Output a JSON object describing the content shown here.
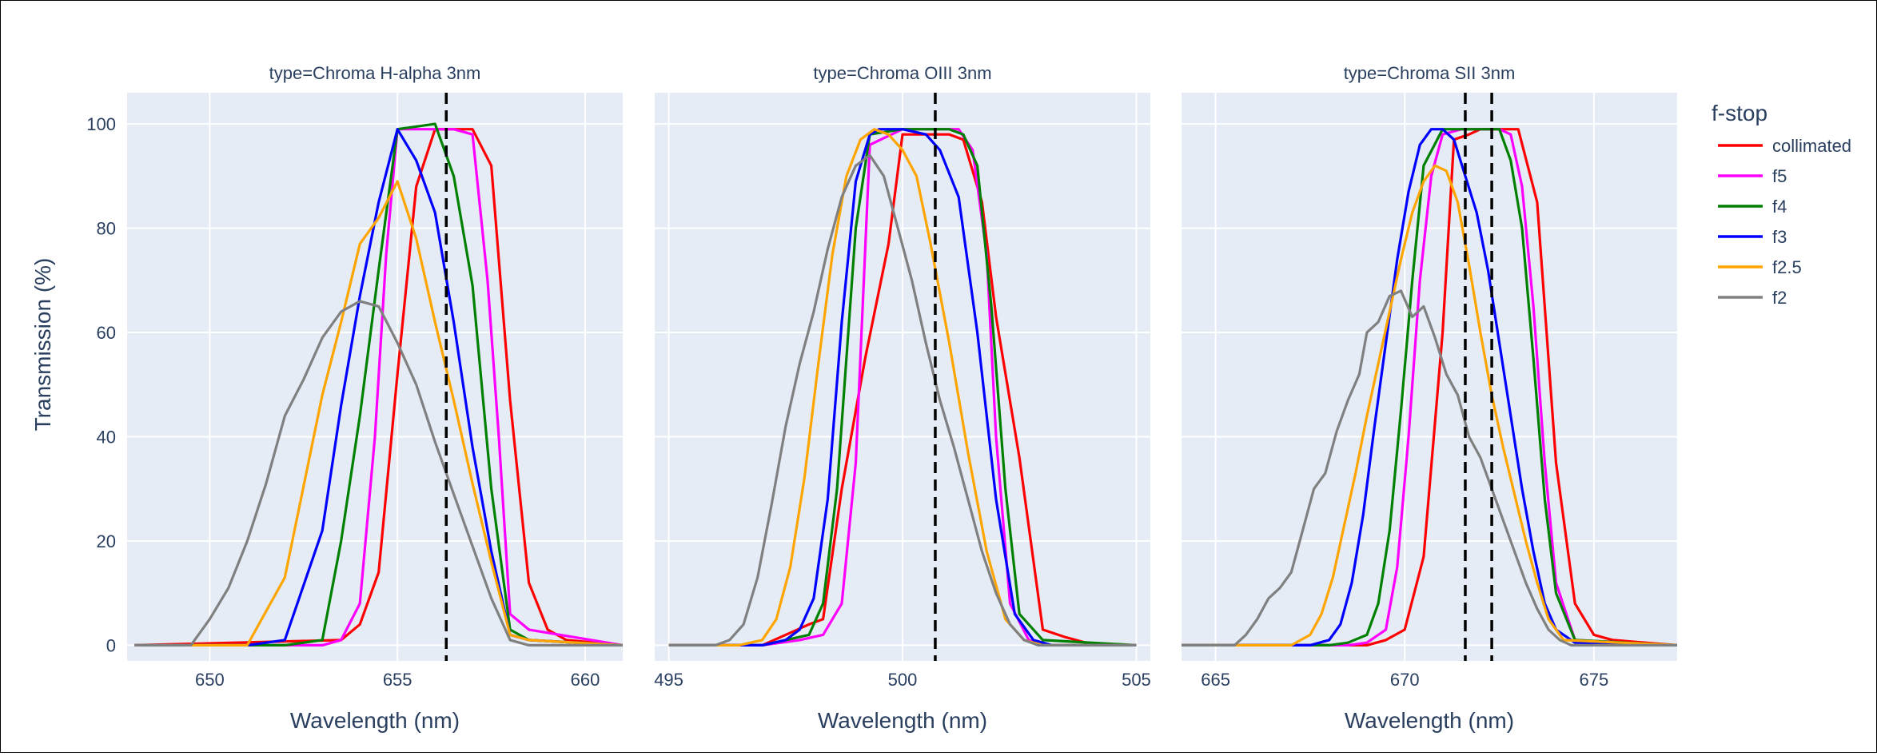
{
  "chart_data": {
    "type": "line",
    "ylabel": "Transmission (%)",
    "xlabel": "Wavelength (nm)",
    "ylim": [
      -3,
      106
    ],
    "y_ticks": [
      0,
      20,
      40,
      60,
      80,
      100
    ],
    "grid": true,
    "legend": {
      "title": "f-stop",
      "position": "right",
      "items": [
        {
          "name": "collimated",
          "color": "#ff0000"
        },
        {
          "name": "f5",
          "color": "#ff00ff"
        },
        {
          "name": "f4",
          "color": "#008000"
        },
        {
          "name": "f3",
          "color": "#0000ff"
        },
        {
          "name": "f2.5",
          "color": "#ffa500"
        },
        {
          "name": "f2",
          "color": "#808080"
        }
      ]
    },
    "colors": {
      "plot_bg": "#e5ecf6",
      "grid": "#ffffff",
      "text": "#2a3f5f",
      "marker_line": "#000000"
    },
    "panels": [
      {
        "title": "type=Chroma H-alpha 3nm",
        "xlim": [
          647.8,
          661.0
        ],
        "x_ticks": [
          650,
          655,
          660
        ],
        "marker_lines": [
          656.3
        ],
        "series": [
          {
            "name": "collimated",
            "x": [
              648,
              653.5,
              654,
              654.5,
              655,
              655.5,
              656,
              656.5,
              657,
              657.5,
              658,
              658.5,
              659,
              659.5,
              661
            ],
            "y": [
              0,
              1,
              4,
              14,
              52,
              88,
              99,
              99,
              99,
              92,
              47,
              12,
              3,
              1,
              0
            ]
          },
          {
            "name": "f5",
            "x": [
              648,
              653,
              653.5,
              654,
              654.4,
              654.7,
              655,
              655.5,
              656,
              656.5,
              657,
              657.4,
              657.7,
              658,
              658.5,
              661
            ],
            "y": [
              0,
              0,
              1,
              8,
              40,
              75,
              99,
              99,
              99,
              99,
              98,
              70,
              40,
              6,
              3,
              0
            ]
          },
          {
            "name": "f4",
            "x": [
              648,
              652,
              653,
              653.5,
              654,
              654.5,
              655,
              656,
              656.5,
              657,
              657.5,
              658,
              658.5,
              661
            ],
            "y": [
              0,
              0,
              1,
              20,
              44,
              72,
              99,
              100,
              90,
              69,
              30,
              3,
              1,
              0
            ]
          },
          {
            "name": "f3",
            "x": [
              648,
              651,
              652,
              653,
              653.5,
              654,
              654.5,
              655,
              655.5,
              656,
              656.5,
              657,
              657.5,
              658,
              658.5,
              661
            ],
            "y": [
              0,
              0,
              1,
              22,
              46,
              67,
              85,
              99,
              93,
              83,
              62,
              38,
              18,
              2,
              1,
              0
            ]
          },
          {
            "name": "f2.5",
            "x": [
              648,
              651,
              652,
              653,
              653.5,
              654,
              654.5,
              655,
              655.5,
              656,
              656.5,
              657,
              657.5,
              658,
              658.5,
              661
            ],
            "y": [
              0,
              0,
              13,
              48,
              62,
              77,
              82,
              89,
              78,
              62,
              47,
              31,
              16,
              2,
              1,
              0
            ]
          },
          {
            "name": "f2",
            "x": [
              648,
              649.5,
              650,
              650.5,
              651,
              651.5,
              652,
              652.5,
              653,
              653.5,
              654,
              654.5,
              655,
              655.5,
              656,
              656.5,
              657,
              657.5,
              658,
              658.5,
              661
            ],
            "y": [
              0,
              0,
              5,
              11,
              20,
              31,
              44,
              51,
              59,
              64,
              66,
              65,
              58,
              50,
              39,
              29,
              19,
              9,
              1,
              0,
              0
            ]
          }
        ]
      },
      {
        "title": "type=Chroma OIII 3nm",
        "xlim": [
          494.7,
          505.3
        ],
        "x_ticks": [
          495,
          500,
          505
        ],
        "marker_lines": [
          500.7
        ],
        "series": [
          {
            "name": "collimated",
            "x": [
              495,
              497,
              497.5,
              498,
              498.3,
              498.7,
              499.2,
              499.7,
              500,
              500.5,
              501,
              501.3,
              501.7,
              502,
              502.5,
              503,
              503.5,
              504,
              505
            ],
            "y": [
              0,
              0,
              2,
              4,
              5,
              30,
              55,
              77,
              98,
              98,
              98,
              97,
              85,
              63,
              36,
              3,
              1.5,
              0.3,
              0
            ]
          },
          {
            "name": "f5",
            "x": [
              495,
              497,
              497.8,
              498.3,
              498.7,
              499,
              499.3,
              500,
              500.5,
              501,
              501.2,
              501.5,
              501.8,
              502,
              502.3,
              502.7,
              503,
              505
            ],
            "y": [
              0,
              0,
              1,
              2,
              8,
              35,
              96,
              99,
              99,
              99,
              99,
              95,
              75,
              40,
              8,
              1,
              0,
              0
            ]
          },
          {
            "name": "f4",
            "x": [
              495,
              497,
              497.5,
              498,
              498.3,
              498.6,
              499,
              499.3,
              500,
              501,
              501.3,
              501.6,
              501.9,
              502.2,
              502.5,
              503,
              505
            ],
            "y": [
              0,
              0,
              1,
              2,
              8,
              30,
              80,
              98,
              99,
              99,
              98,
              92,
              65,
              30,
              6,
              1,
              0
            ]
          },
          {
            "name": "f3",
            "x": [
              495,
              497,
              497.5,
              497.8,
              498.1,
              498.4,
              498.7,
              499,
              499.3,
              499.5,
              500,
              500.5,
              500.8,
              501.2,
              501.6,
              502,
              502.4,
              502.8,
              503.2,
              505
            ],
            "y": [
              0,
              0,
              1,
              3,
              9,
              28,
              62,
              89,
              98,
              99,
              99,
              98,
              95,
              86,
              60,
              28,
              6,
              1,
              0,
              0
            ]
          },
          {
            "name": "f2.5",
            "x": [
              495,
              496.5,
              497,
              497.3,
              497.6,
              497.9,
              498.2,
              498.5,
              498.8,
              499.1,
              499.4,
              499.7,
              500,
              500.3,
              500.6,
              501,
              501.4,
              501.8,
              502.2,
              502.6,
              503,
              505
            ],
            "y": [
              0,
              0,
              1,
              5,
              15,
              32,
              54,
              75,
              90,
              97,
              99,
              98,
              95,
              90,
              77,
              58,
              37,
              18,
              5,
              1,
              0,
              0
            ]
          },
          {
            "name": "f2",
            "x": [
              495,
              496,
              496.3,
              496.6,
              496.9,
              497.2,
              497.5,
              497.8,
              498.1,
              498.4,
              498.7,
              499,
              499.3,
              499.6,
              499.9,
              500.2,
              500.5,
              500.8,
              501.1,
              501.4,
              501.7,
              502,
              502.3,
              502.6,
              502.9,
              503.2,
              505
            ],
            "y": [
              0,
              0,
              1,
              4,
              13,
              27,
              42,
              54,
              64,
              76,
              86,
              92,
              94,
              90,
              80,
              70,
              58,
              47,
              38,
              28,
              18,
              10,
              4,
              1,
              0,
              0,
              0
            ]
          }
        ]
      },
      {
        "title": "type=Chroma SII 3nm",
        "xlim": [
          664.1,
          677.2
        ],
        "x_ticks": [
          665,
          670,
          675
        ],
        "marker_lines": [
          671.6,
          672.3
        ],
        "series": [
          {
            "name": "collimated",
            "x": [
              664,
              669,
              669.5,
              670,
              670.5,
              671,
              671.3,
              671.7,
              672,
              672.5,
              673,
              673.5,
              674,
              674.5,
              675,
              675.5,
              677.2
            ],
            "y": [
              0,
              0,
              1,
              3,
              17,
              60,
              97,
              98,
              99,
              99,
              99,
              85,
              35,
              8,
              2,
              1,
              0
            ]
          },
          {
            "name": "f5",
            "x": [
              664,
              668.5,
              669,
              669.5,
              669.8,
              670.1,
              670.4,
              670.7,
              671,
              671.5,
              672,
              672.5,
              672.8,
              673.1,
              673.4,
              673.7,
              674,
              674.5,
              677.2
            ],
            "y": [
              0,
              0,
              0.5,
              3,
              15,
              40,
              70,
              90,
              98,
              99,
              99,
              99,
              98,
              88,
              65,
              35,
              12,
              1,
              0
            ]
          },
          {
            "name": "f4",
            "x": [
              664,
              668,
              668.5,
              669,
              669.3,
              669.6,
              669.9,
              670.2,
              670.5,
              671,
              671.5,
              672,
              672.5,
              672.8,
              673.1,
              673.4,
              673.7,
              674,
              674.5,
              677.2
            ],
            "y": [
              0,
              0,
              0.5,
              2,
              8,
              22,
              45,
              70,
              92,
              99,
              99,
              99,
              99,
              93,
              80,
              55,
              28,
              10,
              1,
              0
            ]
          },
          {
            "name": "f3",
            "x": [
              664,
              667.5,
              668,
              668.3,
              668.6,
              668.9,
              669.2,
              669.5,
              669.8,
              670.1,
              670.4,
              670.7,
              671,
              671.3,
              671.6,
              671.9,
              672.2,
              672.5,
              672.8,
              673.1,
              673.4,
              673.7,
              674,
              674.5,
              677.2
            ],
            "y": [
              0,
              0,
              1,
              4,
              12,
              25,
              42,
              58,
              74,
              87,
              96,
              99,
              99,
              97,
              90,
              83,
              72,
              58,
              44,
              30,
              18,
              8,
              3,
              0.5,
              0
            ]
          },
          {
            "name": "f2.5",
            "x": [
              664,
              667,
              667.5,
              667.8,
              668.1,
              668.4,
              668.7,
              669,
              669.3,
              669.6,
              669.9,
              670.2,
              670.5,
              670.8,
              671.1,
              671.4,
              671.7,
              672,
              672.3,
              672.6,
              672.9,
              673.2,
              673.5,
              673.8,
              674.2,
              677.2
            ],
            "y": [
              0,
              0,
              2,
              6,
              13,
              23,
              33,
              44,
              54,
              64,
              74,
              83,
              89,
              92,
              91,
              85,
              73,
              60,
              48,
              38,
              29,
              20,
              12,
              5,
              1,
              0
            ]
          },
          {
            "name": "f2",
            "x": [
              664,
              665.5,
              665.8,
              666.1,
              666.4,
              666.7,
              667,
              667.3,
              667.6,
              667.9,
              668.2,
              668.5,
              668.8,
              669,
              669.3,
              669.6,
              669.9,
              670.2,
              670.5,
              670.8,
              671.1,
              671.4,
              671.7,
              672,
              672.3,
              672.6,
              672.9,
              673.2,
              673.5,
              673.8,
              674.1,
              674.4,
              677.2
            ],
            "y": [
              0,
              0,
              2,
              5,
              9,
              11,
              14,
              22,
              30,
              33,
              41,
              47,
              52,
              60,
              62,
              67,
              68,
              63,
              65,
              59,
              52,
              48,
              40,
              36,
              30,
              24,
              18,
              12,
              7,
              3,
              1,
              0,
              0
            ]
          }
        ]
      }
    ]
  }
}
